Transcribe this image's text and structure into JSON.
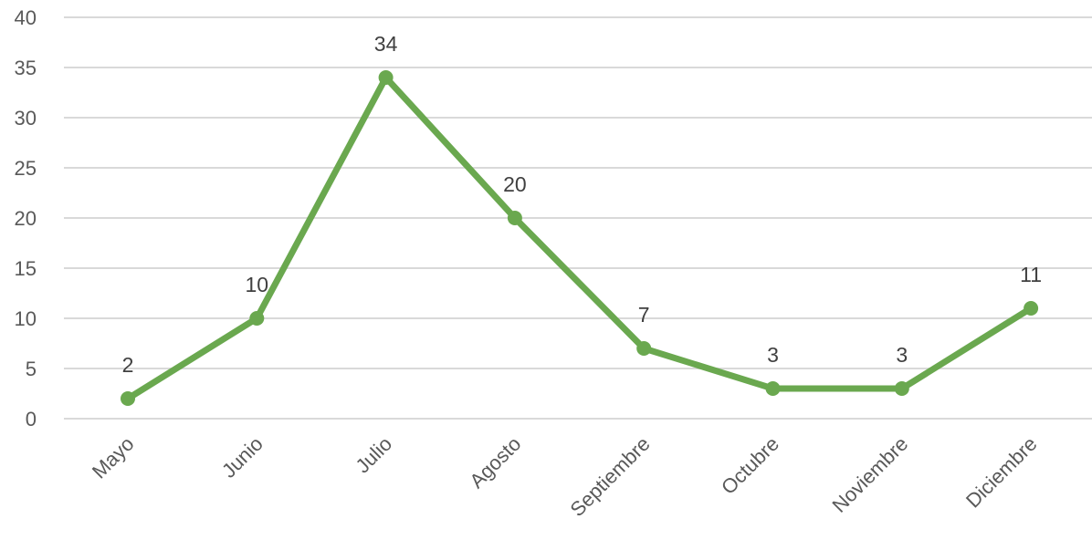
{
  "chart_data": {
    "type": "line",
    "title": "",
    "xlabel": "",
    "ylabel": "",
    "categories": [
      "Mayo",
      "Junio",
      "Julio",
      "Agosto",
      "Septiembre",
      "Octubre",
      "Noviembre",
      "Diciembre"
    ],
    "series": [
      {
        "values": [
          2,
          10,
          34,
          20,
          7,
          3,
          3,
          11
        ],
        "color": "#6aa84f"
      }
    ],
    "ylim": [
      0,
      40
    ],
    "yticks": [
      "0",
      "5",
      "10",
      "15",
      "20",
      "25",
      "30",
      "35",
      "40"
    ],
    "data_labels": [
      "2",
      "10",
      "34",
      "20",
      "7",
      "3",
      "3",
      "11"
    ],
    "grid": true,
    "grid_color": "#d9d9d9",
    "legend": "none"
  }
}
